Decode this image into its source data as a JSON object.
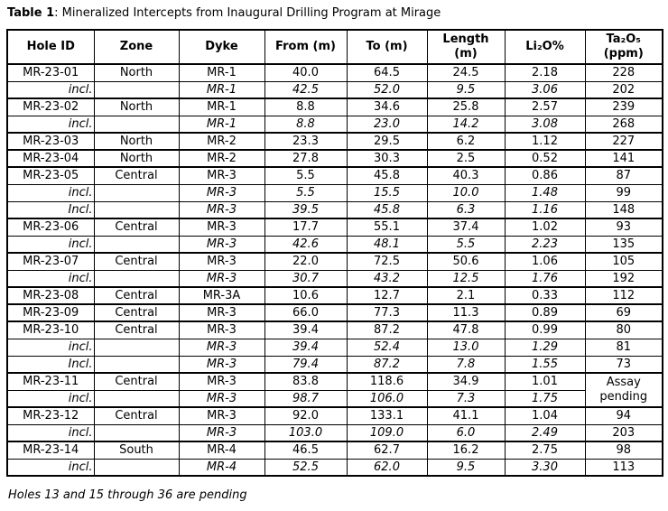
{
  "title": {
    "bold": "Table 1",
    "rest": ": Mineralized Intercepts from Inaugural Drilling Program at Mirage"
  },
  "colors": {
    "background": "#ffffff",
    "text": "#000000",
    "border": "#000000"
  },
  "table": {
    "headers": [
      "Hole ID",
      "Zone",
      "Dyke",
      "From (m)",
      "To (m)",
      "Length (m)",
      "Li₂O%",
      "Ta₂O₅\n(ppm)"
    ],
    "rows": [
      {
        "type": "main",
        "hole": "MR-23-01",
        "zone": "North",
        "dyke": "MR-1",
        "from": "40.0",
        "to": "64.5",
        "length": "24.5",
        "li2o": "2.18",
        "ta2o5": "228"
      },
      {
        "type": "incl",
        "hole": "incl.",
        "zone": "",
        "dyke": "MR-1",
        "from": "42.5",
        "to": "52.0",
        "length": "9.5",
        "li2o": "3.06",
        "ta2o5": "202"
      },
      {
        "type": "main",
        "hole": "MR-23-02",
        "zone": "North",
        "dyke": "MR-1",
        "from": "8.8",
        "to": "34.6",
        "length": "25.8",
        "li2o": "2.57",
        "ta2o5": "239"
      },
      {
        "type": "incl",
        "hole": "incl.",
        "zone": "",
        "dyke": "MR-1",
        "from": "8.8",
        "to": "23.0",
        "length": "14.2",
        "li2o": "3.08",
        "ta2o5": "268"
      },
      {
        "type": "main",
        "hole": "MR-23-03",
        "zone": "North",
        "dyke": "MR-2",
        "from": "23.3",
        "to": "29.5",
        "length": "6.2",
        "li2o": "1.12",
        "ta2o5": "227"
      },
      {
        "type": "main",
        "hole": "MR-23-04",
        "zone": "North",
        "dyke": "MR-2",
        "from": "27.8",
        "to": "30.3",
        "length": "2.5",
        "li2o": "0.52",
        "ta2o5": "141"
      },
      {
        "type": "main",
        "hole": "MR-23-05",
        "zone": "Central",
        "dyke": "MR-3",
        "from": "5.5",
        "to": "45.8",
        "length": "40.3",
        "li2o": "0.86",
        "ta2o5": "87"
      },
      {
        "type": "incl",
        "hole": "incl.",
        "zone": "",
        "dyke": "MR-3",
        "from": "5.5",
        "to": "15.5",
        "length": "10.0",
        "li2o": "1.48",
        "ta2o5": "99"
      },
      {
        "type": "incl",
        "hole": "Incl.",
        "zone": "",
        "dyke": "MR-3",
        "from": "39.5",
        "to": "45.8",
        "length": "6.3",
        "li2o": "1.16",
        "ta2o5": "148"
      },
      {
        "type": "main",
        "hole": "MR-23-06",
        "zone": "Central",
        "dyke": "MR-3",
        "from": "17.7",
        "to": "55.1",
        "length": "37.4",
        "li2o": "1.02",
        "ta2o5": "93"
      },
      {
        "type": "incl",
        "hole": "incl.",
        "zone": "",
        "dyke": "MR-3",
        "from": "42.6",
        "to": "48.1",
        "length": "5.5",
        "li2o": "2.23",
        "ta2o5": "135"
      },
      {
        "type": "main",
        "hole": "MR-23-07",
        "zone": "Central",
        "dyke": "MR-3",
        "from": "22.0",
        "to": "72.5",
        "length": "50.6",
        "li2o": "1.06",
        "ta2o5": "105"
      },
      {
        "type": "incl",
        "hole": "incl.",
        "zone": "",
        "dyke": "MR-3",
        "from": "30.7",
        "to": "43.2",
        "length": "12.5",
        "li2o": "1.76",
        "ta2o5": "192"
      },
      {
        "type": "main",
        "hole": "MR-23-08",
        "zone": "Central",
        "dyke": "MR-3A",
        "from": "10.6",
        "to": "12.7",
        "length": "2.1",
        "li2o": "0.33",
        "ta2o5": "112"
      },
      {
        "type": "main",
        "hole": "MR-23-09",
        "zone": "Central",
        "dyke": "MR-3",
        "from": "66.0",
        "to": "77.3",
        "length": "11.3",
        "li2o": "0.89",
        "ta2o5": "69"
      },
      {
        "type": "main",
        "hole": "MR-23-10",
        "zone": "Central",
        "dyke": "MR-3",
        "from": "39.4",
        "to": "87.2",
        "length": "47.8",
        "li2o": "0.99",
        "ta2o5": "80"
      },
      {
        "type": "incl",
        "hole": "incl.",
        "zone": "",
        "dyke": "MR-3",
        "from": "39.4",
        "to": "52.4",
        "length": "13.0",
        "li2o": "1.29",
        "ta2o5": "81"
      },
      {
        "type": "incl",
        "hole": "Incl.",
        "zone": "",
        "dyke": "MR-3",
        "from": "79.4",
        "to": "87.2",
        "length": "7.8",
        "li2o": "1.55",
        "ta2o5": "73"
      },
      {
        "type": "main",
        "hole": "MR-23-11",
        "zone": "Central",
        "dyke": "MR-3",
        "from": "83.8",
        "to": "118.6",
        "length": "34.9",
        "li2o": "1.01",
        "ta2o5": "Assay pending",
        "ta2o5_rowspan": 2
      },
      {
        "type": "incl",
        "hole": "incl.",
        "zone": "",
        "dyke": "MR-3",
        "from": "98.7",
        "to": "106.0",
        "length": "7.3",
        "li2o": "1.75",
        "ta2o5": null
      },
      {
        "type": "main",
        "hole": "MR-23-12",
        "zone": "Central",
        "dyke": "MR-3",
        "from": "92.0",
        "to": "133.1",
        "length": "41.1",
        "li2o": "1.04",
        "ta2o5": "94"
      },
      {
        "type": "incl",
        "hole": "incl.",
        "zone": "",
        "dyke": "MR-3",
        "from": "103.0",
        "to": "109.0",
        "length": "6.0",
        "li2o": "2.49",
        "ta2o5": "203"
      },
      {
        "type": "main",
        "hole": "MR-23-14",
        "zone": "South",
        "dyke": "MR-4",
        "from": "46.5",
        "to": "62.7",
        "length": "16.2",
        "li2o": "2.75",
        "ta2o5": "98"
      },
      {
        "type": "incl",
        "hole": "incl.",
        "zone": "",
        "dyke": "MR-4",
        "from": "52.5",
        "to": "62.0",
        "length": "9.5",
        "li2o": "3.30",
        "ta2o5": "113"
      }
    ]
  },
  "footnote": "Holes 13 and 15 through 36 are pending"
}
